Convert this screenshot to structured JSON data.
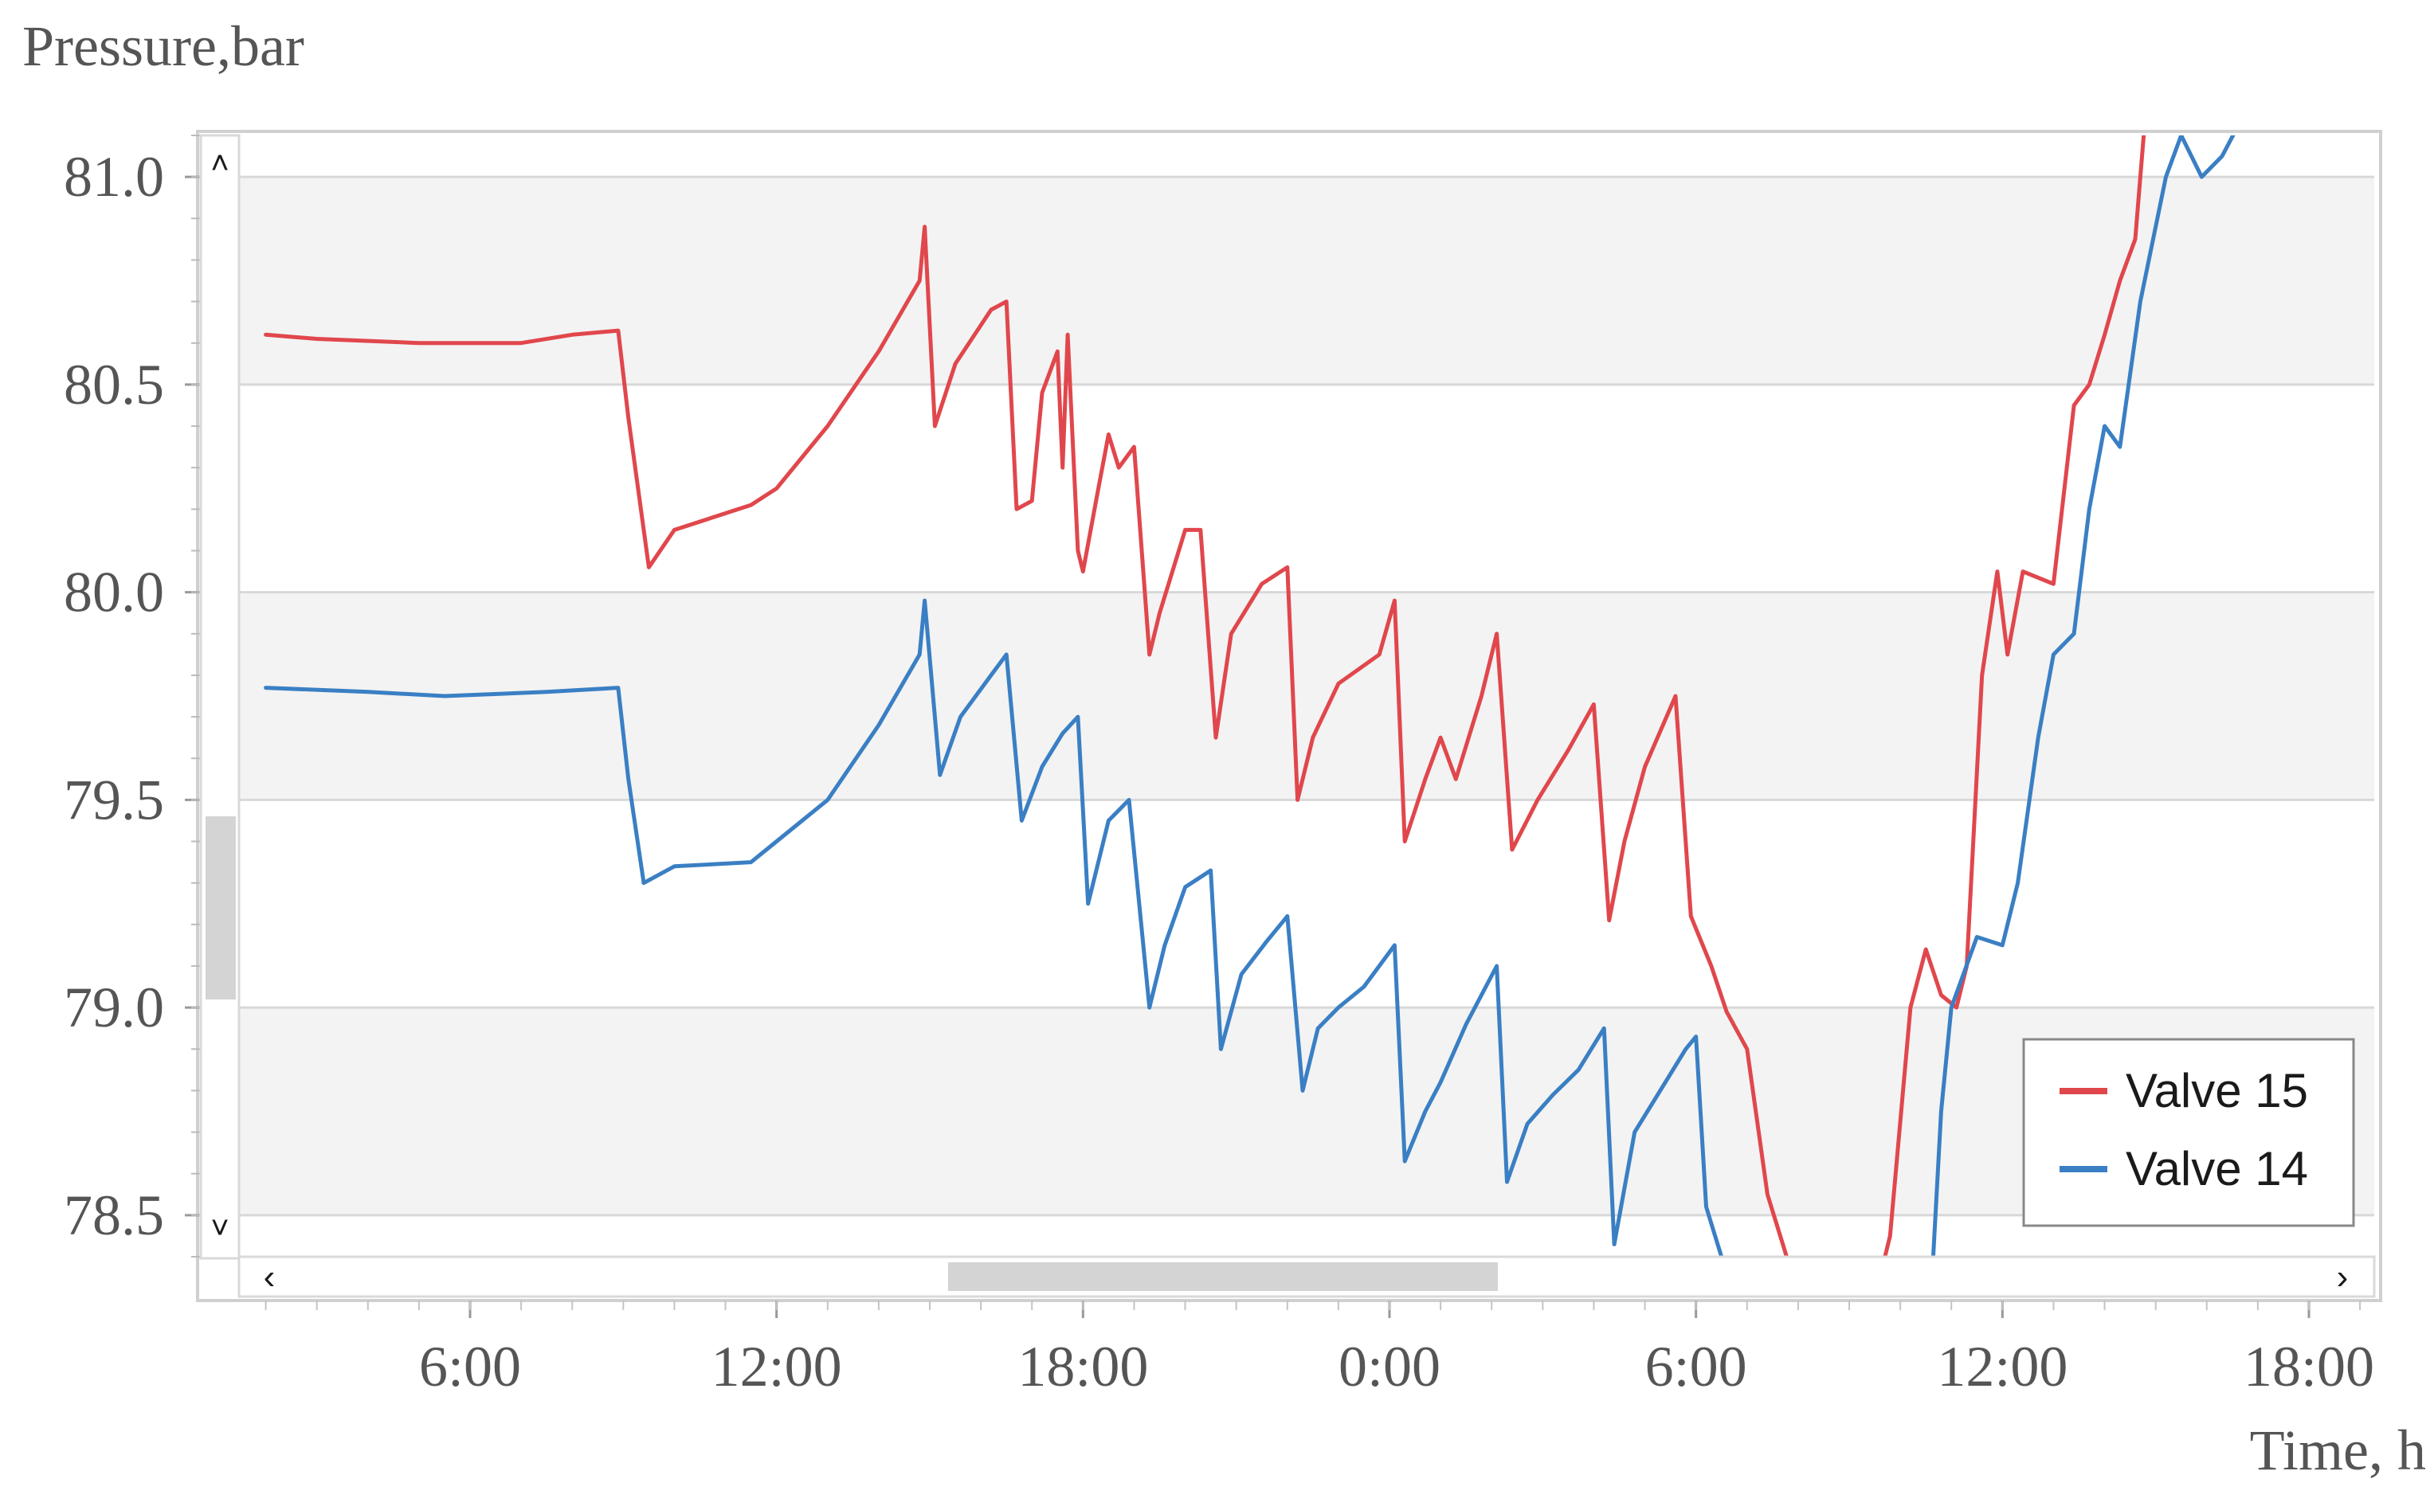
{
  "chart_data": {
    "type": "line",
    "ylabel": "Pressure,bar",
    "xlabel": "Time, h",
    "ylim": [
      78.4,
      81.1
    ],
    "xlim_hours": [
      2.0,
      19.0
    ],
    "yticks": [
      "81.0",
      "80.5",
      "80.0",
      "79.5",
      "79.0",
      "78.5"
    ],
    "ytick_values": [
      81.0,
      80.5,
      80.0,
      79.5,
      79.0,
      78.5
    ],
    "xticks": [
      "6:00",
      "12:00",
      "18:00",
      "0:00",
      "6:00",
      "12:00",
      "18:00"
    ],
    "xtick_hours": [
      6,
      12,
      18,
      24,
      30,
      36,
      42
    ],
    "x_unit": "hours elapsed since 0:00 of the first day shown",
    "x_range": [
      2.0,
      43.5
    ],
    "grid": "horizontal bands",
    "legend_position": "bottom-right",
    "series": [
      {
        "name": "Valve 15",
        "color": "#e0474c",
        "points": [
          [
            2.0,
            80.62
          ],
          [
            3.0,
            80.61
          ],
          [
            5.0,
            80.6
          ],
          [
            7.0,
            80.6
          ],
          [
            8.0,
            80.62
          ],
          [
            8.9,
            80.63
          ],
          [
            9.1,
            80.42
          ],
          [
            9.5,
            80.06
          ],
          [
            10.0,
            80.15
          ],
          [
            11.5,
            80.21
          ],
          [
            12.0,
            80.25
          ],
          [
            13.0,
            80.4
          ],
          [
            14.0,
            80.58
          ],
          [
            14.8,
            80.75
          ],
          [
            14.9,
            80.88
          ],
          [
            15.1,
            80.4
          ],
          [
            15.5,
            80.55
          ],
          [
            16.2,
            80.68
          ],
          [
            16.5,
            80.7
          ],
          [
            16.7,
            80.2
          ],
          [
            17.0,
            80.22
          ],
          [
            17.2,
            80.48
          ],
          [
            17.5,
            80.58
          ],
          [
            17.6,
            80.3
          ],
          [
            17.7,
            80.62
          ],
          [
            17.9,
            80.1
          ],
          [
            18.0,
            80.05
          ],
          [
            18.3,
            80.25
          ],
          [
            18.5,
            80.38
          ],
          [
            18.7,
            80.3
          ],
          [
            19.0,
            80.35
          ],
          [
            19.3,
            79.85
          ],
          [
            19.5,
            79.95
          ],
          [
            20.0,
            80.15
          ],
          [
            20.3,
            80.15
          ],
          [
            20.6,
            79.65
          ],
          [
            20.9,
            79.9
          ],
          [
            21.5,
            80.02
          ],
          [
            22.0,
            80.06
          ],
          [
            22.2,
            79.5
          ],
          [
            22.5,
            79.65
          ],
          [
            23.0,
            79.78
          ],
          [
            23.8,
            79.85
          ],
          [
            24.1,
            79.98
          ],
          [
            24.3,
            79.4
          ],
          [
            24.7,
            79.55
          ],
          [
            25.0,
            79.65
          ],
          [
            25.3,
            79.55
          ],
          [
            25.8,
            79.75
          ],
          [
            26.1,
            79.9
          ],
          [
            26.4,
            79.38
          ],
          [
            26.9,
            79.5
          ],
          [
            27.5,
            79.62
          ],
          [
            28.0,
            79.73
          ],
          [
            28.3,
            79.21
          ],
          [
            28.6,
            79.4
          ],
          [
            29.0,
            79.58
          ],
          [
            29.6,
            79.75
          ],
          [
            29.9,
            79.22
          ],
          [
            30.3,
            79.1
          ],
          [
            30.6,
            78.99
          ],
          [
            31.0,
            78.9
          ],
          [
            31.4,
            78.55
          ],
          [
            31.7,
            78.43
          ],
          [
            31.9,
            78.35
          ],
          [
            32.1,
            78.3
          ],
          [
            33.5,
            78.3
          ],
          [
            33.8,
            78.45
          ],
          [
            34.2,
            79.0
          ],
          [
            34.5,
            79.14
          ],
          [
            34.8,
            79.03
          ],
          [
            35.1,
            79.0
          ],
          [
            35.3,
            79.1
          ],
          [
            35.6,
            79.8
          ],
          [
            35.9,
            80.05
          ],
          [
            36.1,
            79.85
          ],
          [
            36.4,
            80.05
          ],
          [
            37.0,
            80.02
          ],
          [
            37.4,
            80.45
          ],
          [
            37.7,
            80.5
          ],
          [
            38.0,
            80.62
          ],
          [
            38.3,
            80.75
          ],
          [
            38.6,
            80.85
          ],
          [
            38.8,
            81.15
          ]
        ]
      },
      {
        "name": "Valve 14",
        "color": "#3a7fc4",
        "points": [
          [
            2.0,
            79.77
          ],
          [
            4.0,
            79.76
          ],
          [
            5.5,
            79.75
          ],
          [
            7.5,
            79.76
          ],
          [
            8.9,
            79.77
          ],
          [
            9.1,
            79.55
          ],
          [
            9.4,
            79.3
          ],
          [
            10.0,
            79.34
          ],
          [
            11.5,
            79.35
          ],
          [
            12.0,
            79.4
          ],
          [
            13.0,
            79.5
          ],
          [
            14.0,
            79.68
          ],
          [
            14.8,
            79.85
          ],
          [
            14.9,
            79.98
          ],
          [
            15.2,
            79.56
          ],
          [
            15.6,
            79.7
          ],
          [
            16.2,
            79.8
          ],
          [
            16.5,
            79.85
          ],
          [
            16.8,
            79.45
          ],
          [
            17.2,
            79.58
          ],
          [
            17.6,
            79.66
          ],
          [
            17.9,
            79.7
          ],
          [
            18.1,
            79.25
          ],
          [
            18.5,
            79.45
          ],
          [
            18.9,
            79.5
          ],
          [
            19.3,
            79.0
          ],
          [
            19.6,
            79.15
          ],
          [
            20.0,
            79.29
          ],
          [
            20.5,
            79.33
          ],
          [
            20.7,
            78.9
          ],
          [
            21.1,
            79.08
          ],
          [
            21.6,
            79.16
          ],
          [
            22.0,
            79.22
          ],
          [
            22.3,
            78.8
          ],
          [
            22.6,
            78.95
          ],
          [
            23.0,
            79.0
          ],
          [
            23.5,
            79.05
          ],
          [
            24.1,
            79.15
          ],
          [
            24.3,
            78.63
          ],
          [
            24.7,
            78.75
          ],
          [
            25.0,
            78.82
          ],
          [
            25.5,
            78.96
          ],
          [
            26.1,
            79.1
          ],
          [
            26.3,
            78.58
          ],
          [
            26.7,
            78.72
          ],
          [
            27.2,
            78.79
          ],
          [
            27.7,
            78.85
          ],
          [
            28.2,
            78.95
          ],
          [
            28.4,
            78.43
          ],
          [
            28.8,
            78.7
          ],
          [
            29.3,
            78.8
          ],
          [
            29.8,
            78.9
          ],
          [
            30.0,
            78.93
          ],
          [
            30.2,
            78.52
          ],
          [
            30.5,
            78.4
          ],
          [
            30.6,
            78.32
          ],
          [
            34.6,
            78.3
          ],
          [
            34.8,
            78.75
          ],
          [
            35.0,
            79.0
          ],
          [
            35.5,
            79.17
          ],
          [
            36.0,
            79.15
          ],
          [
            36.3,
            79.3
          ],
          [
            36.7,
            79.65
          ],
          [
            37.0,
            79.85
          ],
          [
            37.4,
            79.9
          ],
          [
            37.7,
            80.2
          ],
          [
            38.0,
            80.4
          ],
          [
            38.3,
            80.35
          ],
          [
            38.7,
            80.7
          ],
          [
            39.2,
            81.0
          ],
          [
            39.5,
            81.1
          ],
          [
            39.9,
            81.0
          ],
          [
            40.3,
            81.05
          ],
          [
            40.6,
            81.12
          ]
        ]
      }
    ]
  },
  "colors": {
    "band": "#f3f3f3",
    "gridline": "#d8d8d8",
    "frame": "#d0d0d0",
    "scroll_thumb": "#d0d0d0"
  },
  "icons": {
    "v_scroll_up": "caret-up-icon",
    "v_scroll_down": "caret-down-icon",
    "h_scroll_left": "caret-left-icon",
    "h_scroll_right": "caret-right-icon"
  },
  "controls": {
    "h_scroll_arrow_left": "‹",
    "h_scroll_arrow_right": "›",
    "v_scroll_arrow_up": "˄",
    "v_scroll_arrow_down": "˅"
  }
}
